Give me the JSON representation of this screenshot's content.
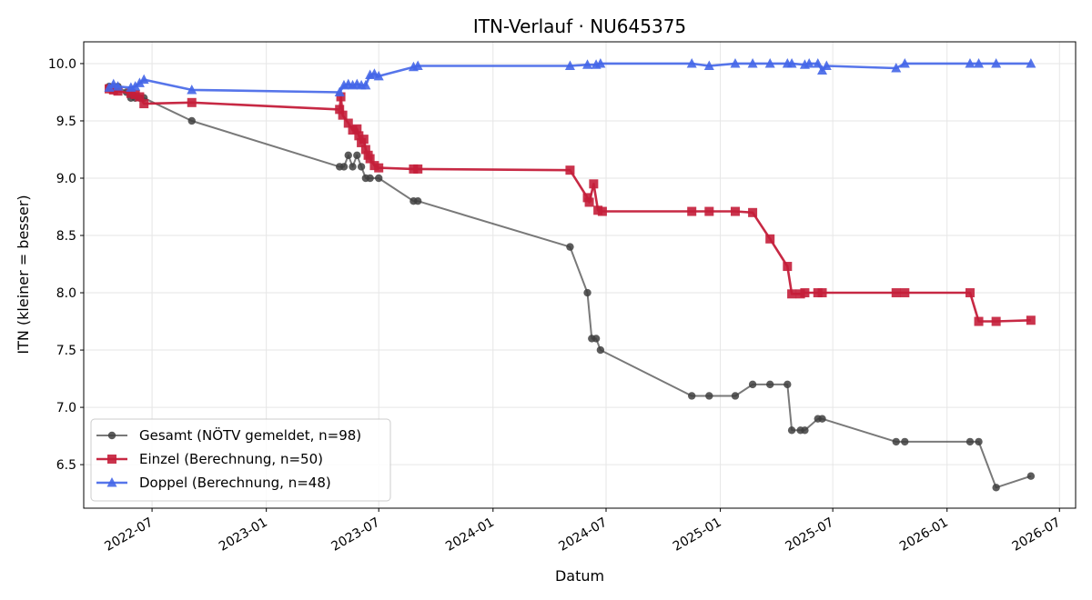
{
  "chart_data": {
    "type": "line",
    "title": "ITN-Verlauf · NU645375",
    "xlabel": "Datum",
    "ylabel": "ITN  (kleiner = besser)",
    "ylim": [
      6.12,
      10.19
    ],
    "xlim": [
      "2022-03-13",
      "2026-07-27"
    ],
    "x_ticks": [
      "2022-07-01",
      "2023-01-01",
      "2023-07-01",
      "2024-01-01",
      "2024-07-01",
      "2025-01-01",
      "2025-07-01",
      "2026-01-01",
      "2026-07-01"
    ],
    "x_tick_labels": [
      "2022-07",
      "2023-01",
      "2023-07",
      "2024-01",
      "2024-07",
      "2025-01",
      "2025-07",
      "2026-01",
      "2026-07"
    ],
    "y_ticks": [
      6.5,
      7.0,
      7.5,
      8.0,
      8.5,
      9.0,
      9.5,
      10.0
    ],
    "y_tick_labels": [
      "6.5",
      "7.0",
      "7.5",
      "8.0",
      "8.5",
      "9.0",
      "9.5",
      "10.0"
    ],
    "grid": true,
    "legend_position": "lower-left",
    "series": [
      {
        "name": "Gesamt (NÖTV gemeldet, n=98)",
        "color": "#404040",
        "marker": "circle",
        "points": [
          [
            "2022-04-23",
            9.8
          ],
          [
            "2022-04-30",
            9.8
          ],
          [
            "2022-05-07",
            9.8
          ],
          [
            "2022-05-21",
            9.75
          ],
          [
            "2022-05-28",
            9.7
          ],
          [
            "2022-06-04",
            9.7
          ],
          [
            "2022-06-11",
            9.7
          ],
          [
            "2022-06-18",
            9.7
          ],
          [
            "2022-09-03",
            9.5
          ],
          [
            "2023-04-29",
            9.1
          ],
          [
            "2023-05-06",
            9.1
          ],
          [
            "2023-05-13",
            9.2
          ],
          [
            "2023-05-20",
            9.1
          ],
          [
            "2023-05-27",
            9.2
          ],
          [
            "2023-06-03",
            9.1
          ],
          [
            "2023-06-10",
            9.0
          ],
          [
            "2023-06-17",
            9.0
          ],
          [
            "2023-07-01",
            9.0
          ],
          [
            "2023-08-26",
            8.8
          ],
          [
            "2023-09-02",
            8.8
          ],
          [
            "2024-05-04",
            8.4
          ],
          [
            "2024-06-01",
            8.0
          ],
          [
            "2024-06-08",
            7.6
          ],
          [
            "2024-06-15",
            7.6
          ],
          [
            "2024-06-22",
            7.5
          ],
          [
            "2024-11-16",
            7.1
          ],
          [
            "2024-12-14",
            7.1
          ],
          [
            "2025-01-25",
            7.1
          ],
          [
            "2025-02-22",
            7.2
          ],
          [
            "2025-03-22",
            7.2
          ],
          [
            "2025-04-19",
            7.2
          ],
          [
            "2025-04-26",
            6.8
          ],
          [
            "2025-05-10",
            6.8
          ],
          [
            "2025-05-17",
            6.8
          ],
          [
            "2025-06-07",
            6.9
          ],
          [
            "2025-06-14",
            6.9
          ],
          [
            "2025-10-11",
            6.7
          ],
          [
            "2025-10-25",
            6.7
          ],
          [
            "2026-02-07",
            6.7
          ],
          [
            "2026-02-21",
            6.7
          ],
          [
            "2026-03-21",
            6.3
          ],
          [
            "2026-05-16",
            6.4
          ]
        ]
      },
      {
        "name": "Einzel (Berechnung, n=50)",
        "color": "#c41e3a",
        "marker": "square",
        "points": [
          [
            "2022-04-23",
            9.78
          ],
          [
            "2022-04-30",
            9.77
          ],
          [
            "2022-05-07",
            9.76
          ],
          [
            "2022-05-28",
            9.74
          ],
          [
            "2022-06-04",
            9.73
          ],
          [
            "2022-06-11",
            9.71
          ],
          [
            "2022-06-18",
            9.65
          ],
          [
            "2022-09-03",
            9.66
          ],
          [
            "2023-04-29",
            9.6
          ],
          [
            "2023-05-01",
            9.71
          ],
          [
            "2023-05-04",
            9.55
          ],
          [
            "2023-05-13",
            9.48
          ],
          [
            "2023-05-20",
            9.42
          ],
          [
            "2023-05-27",
            9.43
          ],
          [
            "2023-05-30",
            9.37
          ],
          [
            "2023-06-03",
            9.31
          ],
          [
            "2023-06-07",
            9.34
          ],
          [
            "2023-06-10",
            9.25
          ],
          [
            "2023-06-14",
            9.2
          ],
          [
            "2023-06-17",
            9.17
          ],
          [
            "2023-06-24",
            9.11
          ],
          [
            "2023-07-01",
            9.09
          ],
          [
            "2023-08-26",
            9.08
          ],
          [
            "2023-09-02",
            9.08
          ],
          [
            "2024-05-04",
            9.07
          ],
          [
            "2024-06-01",
            8.83
          ],
          [
            "2024-06-04",
            8.79
          ],
          [
            "2024-06-11",
            8.95
          ],
          [
            "2024-06-18",
            8.72
          ],
          [
            "2024-06-25",
            8.71
          ],
          [
            "2024-11-16",
            8.71
          ],
          [
            "2024-12-14",
            8.71
          ],
          [
            "2025-01-25",
            8.71
          ],
          [
            "2025-02-22",
            8.7
          ],
          [
            "2025-03-22",
            8.47
          ],
          [
            "2025-04-19",
            8.23
          ],
          [
            "2025-04-26",
            7.99
          ],
          [
            "2025-05-10",
            7.99
          ],
          [
            "2025-05-17",
            8.0
          ],
          [
            "2025-06-07",
            8.0
          ],
          [
            "2025-06-14",
            8.0
          ],
          [
            "2025-10-11",
            8.0
          ],
          [
            "2025-10-25",
            8.0
          ],
          [
            "2026-02-07",
            8.0
          ],
          [
            "2026-02-21",
            7.75
          ],
          [
            "2026-03-21",
            7.75
          ],
          [
            "2026-05-16",
            7.76
          ]
        ]
      },
      {
        "name": "Doppel (Berechnung, n=48)",
        "color": "#4466e8",
        "marker": "triangle",
        "points": [
          [
            "2022-04-23",
            9.79
          ],
          [
            "2022-04-30",
            9.82
          ],
          [
            "2022-05-07",
            9.8
          ],
          [
            "2022-05-28",
            9.79
          ],
          [
            "2022-06-04",
            9.8
          ],
          [
            "2022-06-11",
            9.83
          ],
          [
            "2022-06-18",
            9.86
          ],
          [
            "2022-09-03",
            9.77
          ],
          [
            "2023-04-29",
            9.75
          ],
          [
            "2023-05-06",
            9.81
          ],
          [
            "2023-05-13",
            9.82
          ],
          [
            "2023-05-20",
            9.81
          ],
          [
            "2023-05-27",
            9.82
          ],
          [
            "2023-06-03",
            9.81
          ],
          [
            "2023-06-10",
            9.81
          ],
          [
            "2023-06-17",
            9.9
          ],
          [
            "2023-06-24",
            9.91
          ],
          [
            "2023-07-01",
            9.89
          ],
          [
            "2023-08-26",
            9.97
          ],
          [
            "2023-09-02",
            9.98
          ],
          [
            "2024-05-04",
            9.98
          ],
          [
            "2024-06-01",
            9.99
          ],
          [
            "2024-06-15",
            9.99
          ],
          [
            "2024-06-22",
            10.0
          ],
          [
            "2024-11-16",
            10.0
          ],
          [
            "2024-12-14",
            9.98
          ],
          [
            "2025-01-25",
            10.0
          ],
          [
            "2025-02-22",
            10.0
          ],
          [
            "2025-03-22",
            10.0
          ],
          [
            "2025-04-19",
            10.0
          ],
          [
            "2025-04-26",
            10.0
          ],
          [
            "2025-05-17",
            9.99
          ],
          [
            "2025-05-24",
            10.0
          ],
          [
            "2025-06-07",
            10.0
          ],
          [
            "2025-06-14",
            9.94
          ],
          [
            "2025-06-21",
            9.98
          ],
          [
            "2025-10-11",
            9.96
          ],
          [
            "2025-10-25",
            10.0
          ],
          [
            "2026-02-07",
            10.0
          ],
          [
            "2026-02-21",
            10.0
          ],
          [
            "2026-03-21",
            10.0
          ],
          [
            "2026-05-16",
            10.0
          ]
        ]
      }
    ]
  }
}
